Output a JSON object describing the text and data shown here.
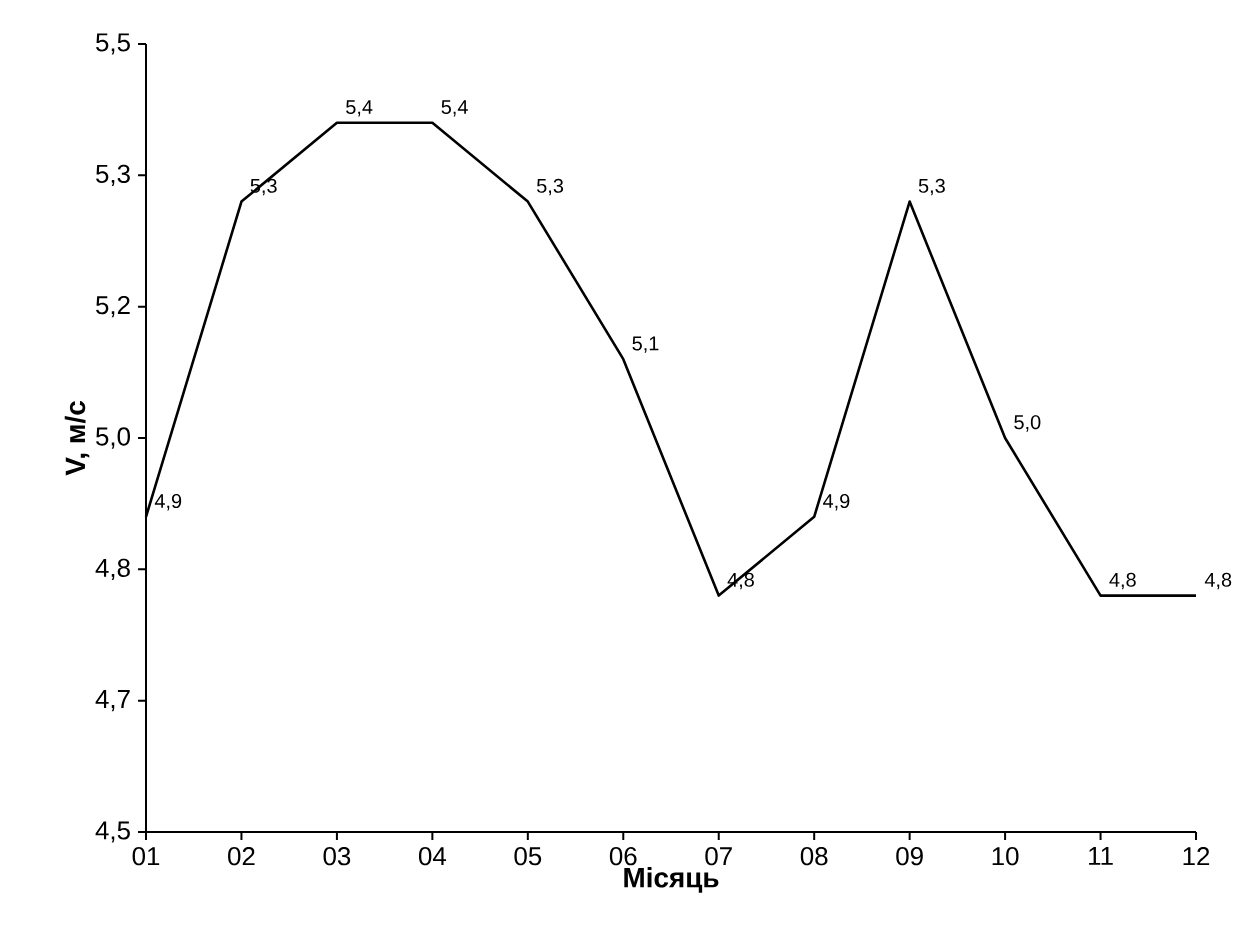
{
  "chart_data": {
    "type": "line",
    "xlabel": "Місяць",
    "ylabel": "V, м/с",
    "categories": [
      "01",
      "02",
      "03",
      "04",
      "05",
      "06",
      "07",
      "08",
      "09",
      "10",
      "11",
      "12"
    ],
    "values": [
      4.9,
      5.3,
      5.4,
      5.4,
      5.3,
      5.1,
      4.8,
      4.9,
      5.3,
      5.0,
      4.8,
      4.8
    ],
    "value_labels": [
      "4,9",
      "5,3",
      "5,4",
      "5,4",
      "5,3",
      "5,1",
      "4,8",
      "4,9",
      "5,3",
      "5,0",
      "4,8",
      "4,8"
    ],
    "color": "#000000",
    "ylim": [
      4.5,
      5.5
    ],
    "yticks": [
      {
        "value": 4.5,
        "label": "4,5"
      },
      {
        "value": 4.6667,
        "label": "4,7"
      },
      {
        "value": 4.8333,
        "label": "4,8"
      },
      {
        "value": 5.0,
        "label": "5,0"
      },
      {
        "value": 5.1667,
        "label": "5,2"
      },
      {
        "value": 5.3333,
        "label": "5,3"
      },
      {
        "value": 5.5,
        "label": "5,5"
      }
    ],
    "grid": false,
    "marker": "none",
    "line_style": "solid"
  }
}
